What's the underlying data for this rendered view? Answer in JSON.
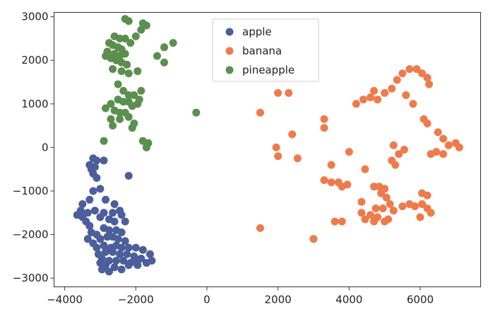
{
  "chart_data": {
    "type": "scatter",
    "title": "",
    "xlabel": "",
    "ylabel": "",
    "xlim": [
      -4300,
      7700
    ],
    "ylim": [
      -3200,
      3100
    ],
    "x_ticks": [
      -4000,
      -2000,
      0,
      2000,
      4000,
      6000
    ],
    "x_tick_labels": [
      "−4000",
      "−2000",
      "0",
      "2000",
      "4000",
      "6000"
    ],
    "y_ticks": [
      3000,
      2000,
      1000,
      0,
      -1000,
      -2000,
      -3000
    ],
    "y_tick_labels": [
      "3000",
      "2000",
      "1000",
      "0",
      "−1000",
      "−2000",
      "−3000"
    ],
    "grid": false,
    "legend": "upper-center",
    "series": [
      {
        "name": "apple",
        "color": "#4c5e9c",
        "points": [
          [
            -3200,
            -250
          ],
          [
            -3100,
            -300
          ],
          [
            -3300,
            -400
          ],
          [
            -3150,
            -450
          ],
          [
            -3250,
            -500
          ],
          [
            -2900,
            -300
          ],
          [
            -3200,
            -600
          ],
          [
            -2200,
            -650
          ],
          [
            -3100,
            -700
          ],
          [
            -3000,
            -950
          ],
          [
            -3200,
            -1000
          ],
          [
            -3300,
            -1200
          ],
          [
            -2850,
            -1200
          ],
          [
            -3500,
            -1300
          ],
          [
            -3550,
            -1450
          ],
          [
            -3650,
            -1550
          ],
          [
            -3500,
            -1600
          ],
          [
            -3350,
            -1500
          ],
          [
            -3150,
            -1450
          ],
          [
            -2600,
            -1300
          ],
          [
            -2450,
            -1450
          ],
          [
            -2400,
            -1550
          ],
          [
            -2650,
            -1500
          ],
          [
            -2900,
            -1500
          ],
          [
            -3000,
            -1600
          ],
          [
            -3300,
            -1800
          ],
          [
            -3400,
            -1700
          ],
          [
            -2750,
            -1650
          ],
          [
            -2600,
            -1700
          ],
          [
            -2300,
            -1700
          ],
          [
            -3250,
            -1950
          ],
          [
            -3100,
            -2000
          ],
          [
            -2900,
            -1850
          ],
          [
            -2750,
            -1900
          ],
          [
            -2550,
            -1900
          ],
          [
            -2400,
            -1950
          ],
          [
            -3350,
            -2100
          ],
          [
            -3200,
            -2200
          ],
          [
            -3000,
            -2100
          ],
          [
            -2800,
            -2050
          ],
          [
            -2650,
            -2050
          ],
          [
            -2500,
            -2100
          ],
          [
            -2300,
            -2150
          ],
          [
            -3100,
            -2300
          ],
          [
            -2900,
            -2250
          ],
          [
            -2700,
            -2300
          ],
          [
            -2550,
            -2250
          ],
          [
            -2400,
            -2300
          ],
          [
            -2200,
            -2300
          ],
          [
            -2000,
            -2300
          ],
          [
            -1800,
            -2350
          ],
          [
            -3050,
            -2450
          ],
          [
            -2850,
            -2400
          ],
          [
            -2650,
            -2400
          ],
          [
            -2450,
            -2450
          ],
          [
            -2250,
            -2450
          ],
          [
            -2050,
            -2500
          ],
          [
            -1850,
            -2550
          ],
          [
            -1600,
            -2450
          ],
          [
            -1550,
            -2600
          ],
          [
            -1700,
            -2650
          ],
          [
            -2950,
            -2550
          ],
          [
            -2750,
            -2600
          ],
          [
            -2550,
            -2600
          ],
          [
            -2350,
            -2600
          ],
          [
            -2150,
            -2650
          ],
          [
            -1950,
            -2700
          ],
          [
            -2850,
            -2700
          ],
          [
            -2600,
            -2750
          ],
          [
            -2400,
            -2800
          ],
          [
            -2950,
            -2800
          ],
          [
            -2750,
            -2850
          ],
          [
            -2200,
            -2700
          ],
          [
            -2000,
            -2600
          ],
          [
            -3000,
            -2650
          ]
        ]
      },
      {
        "name": "banana",
        "color": "#ee7b4c",
        "points": [
          [
            1500,
            800
          ],
          [
            2000,
            1250
          ],
          [
            2300,
            1250
          ],
          [
            1950,
            0
          ],
          [
            2000,
            -200
          ],
          [
            2400,
            300
          ],
          [
            2550,
            -250
          ],
          [
            1500,
            -1850
          ],
          [
            3000,
            -2100
          ],
          [
            3300,
            650
          ],
          [
            3300,
            450
          ],
          [
            3500,
            -400
          ],
          [
            3300,
            -750
          ],
          [
            3500,
            -800
          ],
          [
            3700,
            -800
          ],
          [
            3800,
            -900
          ],
          [
            3950,
            -850
          ],
          [
            4000,
            -100
          ],
          [
            3600,
            -1700
          ],
          [
            3800,
            -1700
          ],
          [
            4200,
            1000
          ],
          [
            4400,
            1100
          ],
          [
            4600,
            1150
          ],
          [
            4700,
            1300
          ],
          [
            4800,
            1100
          ],
          [
            5000,
            1250
          ],
          [
            5200,
            1350
          ],
          [
            5350,
            1550
          ],
          [
            5500,
            1700
          ],
          [
            5700,
            1800
          ],
          [
            5900,
            1800
          ],
          [
            6050,
            1700
          ],
          [
            6200,
            1600
          ],
          [
            6250,
            1450
          ],
          [
            5600,
            1200
          ],
          [
            5800,
            1000
          ],
          [
            6100,
            650
          ],
          [
            6200,
            550
          ],
          [
            6500,
            350
          ],
          [
            6650,
            200
          ],
          [
            6800,
            50
          ],
          [
            7000,
            100
          ],
          [
            7100,
            0
          ],
          [
            6450,
            -100
          ],
          [
            6650,
            -150
          ],
          [
            6300,
            -150
          ],
          [
            5250,
            50
          ],
          [
            5550,
            -50
          ],
          [
            5400,
            -150
          ],
          [
            5300,
            -400
          ],
          [
            5200,
            -300
          ],
          [
            4450,
            -500
          ],
          [
            4700,
            -900
          ],
          [
            4850,
            -900
          ],
          [
            5000,
            -950
          ],
          [
            4900,
            -1050
          ],
          [
            5050,
            -1150
          ],
          [
            5150,
            -1300
          ],
          [
            4950,
            -1400
          ],
          [
            4750,
            -1400
          ],
          [
            4600,
            -1550
          ],
          [
            4350,
            -1500
          ],
          [
            4450,
            -1650
          ],
          [
            4800,
            -1600
          ],
          [
            5000,
            -1700
          ],
          [
            5100,
            -1650
          ],
          [
            4700,
            -1700
          ],
          [
            5250,
            -1450
          ],
          [
            5500,
            -1350
          ],
          [
            5700,
            -1300
          ],
          [
            5850,
            -1350
          ],
          [
            6050,
            -1300
          ],
          [
            6200,
            -1400
          ],
          [
            6050,
            -1050
          ],
          [
            6200,
            -1100
          ],
          [
            6300,
            -1500
          ],
          [
            6000,
            -1600
          ],
          [
            4350,
            -1250
          ]
        ]
      },
      {
        "name": "pineapple",
        "color": "#5a8f4e",
        "points": [
          [
            -2300,
            2950
          ],
          [
            -2200,
            2900
          ],
          [
            -1800,
            2850
          ],
          [
            -1700,
            2800
          ],
          [
            -1850,
            2700
          ],
          [
            -2600,
            2550
          ],
          [
            -2450,
            2500
          ],
          [
            -2300,
            2500
          ],
          [
            -2750,
            2400
          ],
          [
            -2650,
            2350
          ],
          [
            -2500,
            2300
          ],
          [
            -2400,
            2250
          ],
          [
            -2800,
            2200
          ],
          [
            -2600,
            2150
          ],
          [
            -2450,
            2100
          ],
          [
            -2300,
            2150
          ],
          [
            -2700,
            2050
          ],
          [
            -2550,
            2000
          ],
          [
            -2400,
            1950
          ],
          [
            -2250,
            1900
          ],
          [
            -2850,
            2100
          ],
          [
            -2650,
            1800
          ],
          [
            -2400,
            1750
          ],
          [
            -2200,
            1700
          ],
          [
            -1950,
            1750
          ],
          [
            -1400,
            2100
          ],
          [
            -1200,
            1950
          ],
          [
            -950,
            2400
          ],
          [
            -1200,
            2300
          ],
          [
            -2500,
            1450
          ],
          [
            -2350,
            1300
          ],
          [
            -2200,
            1200
          ],
          [
            -2500,
            1100
          ],
          [
            -2350,
            1050
          ],
          [
            -2200,
            1050
          ],
          [
            -2050,
            1200
          ],
          [
            -1850,
            1300
          ],
          [
            -1900,
            1100
          ],
          [
            -2700,
            1000
          ],
          [
            -2600,
            850
          ],
          [
            -2450,
            800
          ],
          [
            -2300,
            800
          ],
          [
            -2100,
            950
          ],
          [
            -1950,
            1000
          ],
          [
            -2850,
            900
          ],
          [
            -2700,
            650
          ],
          [
            -2450,
            650
          ],
          [
            -2200,
            700
          ],
          [
            -2050,
            550
          ],
          [
            -2650,
            500
          ],
          [
            -2100,
            450
          ],
          [
            -2900,
            150
          ],
          [
            -1800,
            150
          ],
          [
            -1650,
            100
          ],
          [
            -1700,
            0
          ],
          [
            -300,
            800
          ],
          [
            -2000,
            2550
          ],
          [
            -2150,
            2400
          ]
        ]
      }
    ]
  }
}
